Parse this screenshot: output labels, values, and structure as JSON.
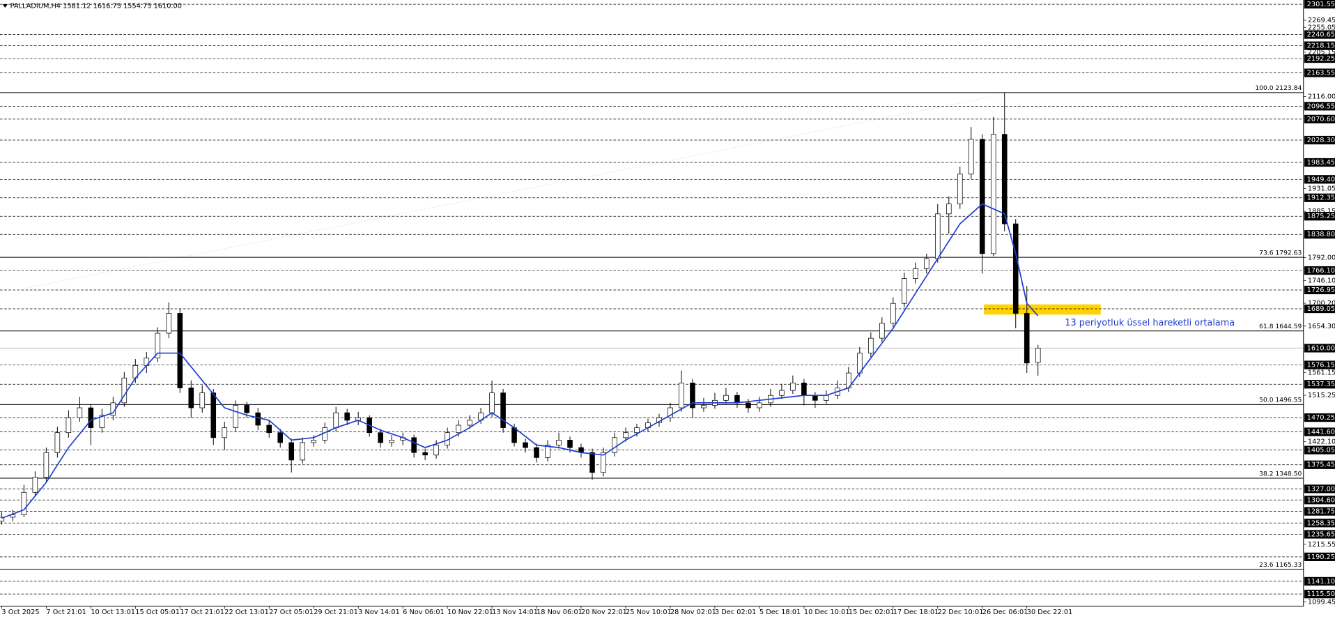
{
  "chart_data": {
    "type": "candlestick",
    "title": "PALLADIUM,H4  1581.12 1616.75 1554.75 1610.00",
    "annotation": "13 periyotluk üssel hareketli ortalama",
    "xlim": [
      -0.6,
      467.3
    ],
    "ylim": [
      1091,
      2310.1
    ],
    "xticks": [
      {
        "value": 0,
        "label": "3 Oct 2025"
      },
      {
        "value": 16,
        "label": "7 Oct 21:01"
      },
      {
        "value": 32,
        "label": "10 Oct 13:01"
      },
      {
        "value": 48,
        "label": "15 Oct 05:01"
      },
      {
        "value": 64,
        "label": "17 Oct 21:01"
      },
      {
        "value": 80,
        "label": "22 Oct 13:01"
      },
      {
        "value": 96,
        "label": "27 Oct 05:01"
      },
      {
        "value": 112,
        "label": "29 Oct 21:01"
      },
      {
        "value": 128,
        "label": "3 Nov 14:01"
      },
      {
        "value": 144,
        "label": "6 Nov 06:01"
      },
      {
        "value": 160,
        "label": "10 Nov 22:01"
      },
      {
        "value": 176,
        "label": "13 Nov 14:01"
      },
      {
        "value": 192,
        "label": "18 Nov 06:01"
      },
      {
        "value": 208,
        "label": "20 Nov 22:01"
      },
      {
        "value": 224,
        "label": "25 Nov 10:01"
      },
      {
        "value": 240,
        "label": "28 Nov 02:01"
      },
      {
        "value": 256,
        "label": "3 Dec 02:01"
      },
      {
        "value": 272,
        "label": "5 Dec 18:01"
      },
      {
        "value": 288,
        "label": "10 Dec 10:01"
      },
      {
        "value": 304,
        "label": "15 Dec 02:01"
      },
      {
        "value": 320,
        "label": "17 Dec 18:01"
      },
      {
        "value": 336,
        "label": "22 Dec 10:01"
      },
      {
        "value": 352,
        "label": "26 Dec 06:01"
      },
      {
        "value": 368,
        "label": "30 Dec 22:01"
      }
    ],
    "yticks": [
      2269.45,
      2255.05,
      2205.15,
      {
        "value": 2116,
        "label": "2116.00"
      },
      1931.05,
      1885.15,
      {
        "value": 1792,
        "label": "1792.00"
      },
      {
        "value": 1746.1,
        "label": "1746.10"
      },
      {
        "value": 1700.2,
        "label": "1700.20"
      },
      {
        "value": 1654.3,
        "label": "1654.30"
      },
      1561.15,
      1515.25,
      {
        "value": 1422.1,
        "label": "1422.10"
      },
      1215.55,
      1099.45
    ],
    "price_levels": [
      2301.55,
      2240.65,
      2218.15,
      2192.25,
      2163.55,
      2096.55,
      {
        "value": 2070.6,
        "label": "2070.60"
      },
      {
        "value": 2028.3,
        "label": "2028.30"
      },
      1983.45,
      {
        "value": 1949.4,
        "label": "1949.40"
      },
      1912.35,
      1875.25,
      {
        "value": 1838.8,
        "label": "1838.80"
      },
      {
        "value": 1766.1,
        "label": "1766.10"
      },
      1726.95,
      1689.05,
      1576.15,
      1537.35,
      1470.25,
      {
        "value": 1441.6,
        "label": "1441.60"
      },
      1405.05,
      1375.45,
      {
        "value": 1327,
        "label": "1327.00"
      },
      {
        "value": 1304.6,
        "label": "1304.60"
      },
      1281.75,
      1258.35,
      1235.65,
      1190.25,
      {
        "value": 1141.1,
        "label": "1141.10"
      },
      {
        "value": 1115.5,
        "label": "1115.50"
      }
    ],
    "last_price": {
      "value": 1610,
      "label": "1610.00"
    },
    "fibonacci": [
      {
        "value": 2123.84,
        "label": "100.0 2123.84"
      },
      {
        "value": 1792.63,
        "label": "73.6 1792.63"
      },
      {
        "value": 1644.59,
        "label": "61.8 1644.59"
      },
      {
        "value": 1496.55,
        "label": "50.0 1496.55"
      },
      {
        "value": 1348.5,
        "label": "38.2 1348.50"
      },
      {
        "value": 1165.33,
        "label": "23.6 1165.33"
      }
    ],
    "candles": [
      [
        0,
        1262,
        1280,
        1255,
        1270
      ],
      [
        4,
        1270,
        1285,
        1262,
        1275
      ],
      [
        8,
        1275,
        1335,
        1270,
        1320
      ],
      [
        12,
        1320,
        1362,
        1312,
        1350
      ],
      [
        16,
        1350,
        1410,
        1342,
        1400
      ],
      [
        20,
        1400,
        1452,
        1390,
        1440
      ],
      [
        24,
        1440,
        1485,
        1430,
        1470
      ],
      [
        28,
        1470,
        1512,
        1462,
        1490
      ],
      [
        32,
        1490,
        1498,
        1415,
        1450
      ],
      [
        36,
        1450,
        1488,
        1440,
        1475
      ],
      [
        40,
        1475,
        1512,
        1465,
        1500
      ],
      [
        44,
        1500,
        1562,
        1492,
        1550
      ],
      [
        48,
        1550,
        1588,
        1540,
        1575
      ],
      [
        52,
        1575,
        1602,
        1560,
        1590
      ],
      [
        56,
        1590,
        1652,
        1582,
        1640
      ],
      [
        60,
        1640,
        1702,
        1630,
        1680
      ],
      [
        64,
        1680,
        1690,
        1520,
        1530
      ],
      [
        68,
        1530,
        1545,
        1470,
        1490
      ],
      [
        72,
        1490,
        1535,
        1480,
        1520
      ],
      [
        76,
        1520,
        1528,
        1415,
        1430
      ],
      [
        80,
        1430,
        1462,
        1405,
        1450
      ],
      [
        84,
        1450,
        1505,
        1442,
        1495
      ],
      [
        88,
        1495,
        1502,
        1470,
        1480
      ],
      [
        92,
        1480,
        1490,
        1445,
        1455
      ],
      [
        96,
        1455,
        1465,
        1430,
        1440
      ],
      [
        100,
        1440,
        1448,
        1410,
        1420
      ],
      [
        104,
        1420,
        1428,
        1360,
        1385
      ],
      [
        108,
        1385,
        1430,
        1378,
        1420
      ],
      [
        112,
        1420,
        1435,
        1412,
        1425
      ],
      [
        116,
        1425,
        1460,
        1418,
        1450
      ],
      [
        120,
        1450,
        1492,
        1442,
        1480
      ],
      [
        124,
        1480,
        1488,
        1455,
        1465
      ],
      [
        128,
        1465,
        1482,
        1455,
        1470
      ],
      [
        132,
        1470,
        1475,
        1432,
        1440
      ],
      [
        136,
        1440,
        1448,
        1410,
        1420
      ],
      [
        140,
        1420,
        1435,
        1412,
        1425
      ],
      [
        144,
        1425,
        1440,
        1415,
        1430
      ],
      [
        148,
        1430,
        1436,
        1390,
        1400
      ],
      [
        152,
        1400,
        1408,
        1385,
        1395
      ],
      [
        156,
        1395,
        1425,
        1388,
        1415
      ],
      [
        160,
        1415,
        1450,
        1408,
        1440
      ],
      [
        164,
        1440,
        1465,
        1432,
        1455
      ],
      [
        168,
        1455,
        1475,
        1448,
        1465
      ],
      [
        172,
        1465,
        1490,
        1458,
        1480
      ],
      [
        176,
        1480,
        1545,
        1472,
        1520
      ],
      [
        180,
        1520,
        1528,
        1440,
        1450
      ],
      [
        184,
        1450,
        1458,
        1412,
        1420
      ],
      [
        188,
        1420,
        1428,
        1400,
        1410
      ],
      [
        192,
        1410,
        1418,
        1380,
        1390
      ],
      [
        196,
        1390,
        1425,
        1382,
        1415
      ],
      [
        200,
        1415,
        1440,
        1408,
        1425
      ],
      [
        204,
        1425,
        1432,
        1400,
        1410
      ],
      [
        208,
        1410,
        1418,
        1390,
        1400
      ],
      [
        212,
        1400,
        1408,
        1345,
        1360
      ],
      [
        216,
        1360,
        1410,
        1352,
        1400
      ],
      [
        220,
        1400,
        1440,
        1392,
        1430
      ],
      [
        224,
        1430,
        1450,
        1422,
        1440
      ],
      [
        228,
        1440,
        1458,
        1432,
        1450
      ],
      [
        232,
        1450,
        1468,
        1442,
        1460
      ],
      [
        236,
        1460,
        1478,
        1452,
        1470
      ],
      [
        240,
        1470,
        1500,
        1462,
        1490
      ],
      [
        244,
        1490,
        1565,
        1482,
        1540
      ],
      [
        248,
        1540,
        1548,
        1470,
        1490
      ],
      [
        252,
        1490,
        1510,
        1482,
        1495
      ],
      [
        256,
        1495,
        1520,
        1488,
        1505
      ],
      [
        260,
        1505,
        1530,
        1498,
        1515
      ],
      [
        264,
        1515,
        1522,
        1490,
        1500
      ],
      [
        268,
        1500,
        1508,
        1480,
        1490
      ],
      [
        272,
        1490,
        1512,
        1482,
        1500
      ],
      [
        276,
        1500,
        1528,
        1492,
        1515
      ],
      [
        280,
        1515,
        1538,
        1508,
        1525
      ],
      [
        284,
        1525,
        1555,
        1518,
        1540
      ],
      [
        288,
        1540,
        1548,
        1495,
        1515
      ],
      [
        292,
        1515,
        1522,
        1490,
        1505
      ],
      [
        296,
        1505,
        1525,
        1498,
        1515
      ],
      [
        300,
        1515,
        1545,
        1508,
        1530
      ],
      [
        304,
        1530,
        1572,
        1522,
        1560
      ],
      [
        308,
        1560,
        1612,
        1552,
        1600
      ],
      [
        312,
        1600,
        1642,
        1592,
        1630
      ],
      [
        316,
        1630,
        1672,
        1622,
        1660
      ],
      [
        320,
        1660,
        1712,
        1652,
        1700
      ],
      [
        324,
        1700,
        1762,
        1692,
        1750
      ],
      [
        328,
        1750,
        1782,
        1740,
        1770
      ],
      [
        332,
        1770,
        1800,
        1760,
        1790
      ],
      [
        336,
        1790,
        1900,
        1782,
        1880
      ],
      [
        340,
        1880,
        1915,
        1840,
        1900
      ],
      [
        344,
        1900,
        1975,
        1890,
        1960
      ],
      [
        348,
        1960,
        2055,
        1950,
        2030
      ],
      [
        352,
        2030,
        2040,
        1760,
        1800
      ],
      [
        356,
        1800,
        2075,
        1795,
        2040
      ],
      [
        360,
        2040,
        2123.84,
        1845,
        1860
      ],
      [
        364,
        1860,
        1870,
        1650,
        1680
      ],
      [
        368,
        1680,
        1735,
        1560,
        1580
      ],
      [
        372,
        1581.12,
        1616.75,
        1554.75,
        1610
      ]
    ],
    "candle_color": "#000000",
    "ema_color": "#1f3fcf",
    "ema_x": [
      0,
      8,
      16,
      24,
      32,
      40,
      48,
      56,
      64,
      72,
      80,
      88,
      96,
      104,
      112,
      120,
      128,
      136,
      144,
      152,
      160,
      168,
      176,
      184,
      192,
      200,
      208,
      216,
      224,
      232,
      240,
      248,
      256,
      264,
      272,
      280,
      288,
      296,
      304,
      312,
      320,
      328,
      336,
      344,
      352,
      360,
      364,
      368,
      372
    ],
    "ema_values": [
      1268,
      1285,
      1340,
      1410,
      1465,
      1480,
      1550,
      1600,
      1600,
      1545,
      1490,
      1475,
      1465,
      1425,
      1430,
      1450,
      1465,
      1445,
      1430,
      1410,
      1425,
      1450,
      1480,
      1450,
      1415,
      1410,
      1400,
      1395,
      1425,
      1450,
      1475,
      1500,
      1500,
      1500,
      1505,
      1510,
      1515,
      1515,
      1530,
      1590,
      1650,
      1720,
      1790,
      1860,
      1900,
      1880,
      1800,
      1700,
      1675
    ]
  }
}
